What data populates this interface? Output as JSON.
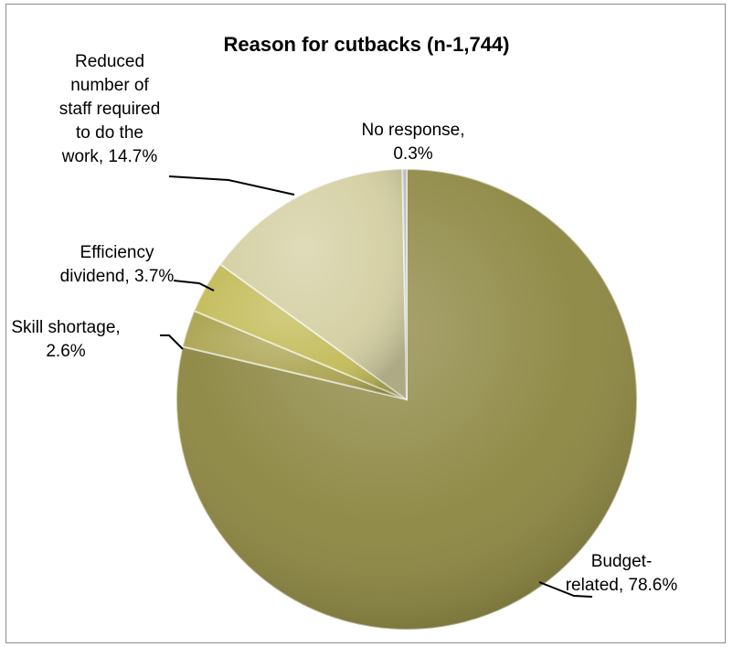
{
  "chart_data": {
    "type": "pie",
    "title": "Reason for cutbacks (n-1,744)",
    "slices": [
      {
        "label": "Budget-related",
        "value": 78.6,
        "display_label": [
          "Budget-",
          "related, 78.6%"
        ],
        "color": "#8c8640"
      },
      {
        "label": "Skill shortage",
        "value": 2.6,
        "display_label": [
          "Skill shortage,",
          "2.6%"
        ],
        "color": "#aba451"
      },
      {
        "label": "Efficiency dividend",
        "value": 3.7,
        "display_label": [
          "Efficiency",
          "dividend, 3.7%"
        ],
        "color": "#c3bb58"
      },
      {
        "label": "Reduced number of staff required to do the work",
        "value": 14.7,
        "display_label": [
          "Reduced",
          "number of",
          "staff required",
          "to do the",
          "work, 14.7%"
        ],
        "color": "#d4cfa2"
      },
      {
        "label": "No response",
        "value": 0.3,
        "display_label": [
          "No response,",
          "0.3%"
        ],
        "color": "#b8b8b8"
      }
    ],
    "start": "12 o'clock",
    "direction": "clockwise",
    "legend": "none"
  }
}
